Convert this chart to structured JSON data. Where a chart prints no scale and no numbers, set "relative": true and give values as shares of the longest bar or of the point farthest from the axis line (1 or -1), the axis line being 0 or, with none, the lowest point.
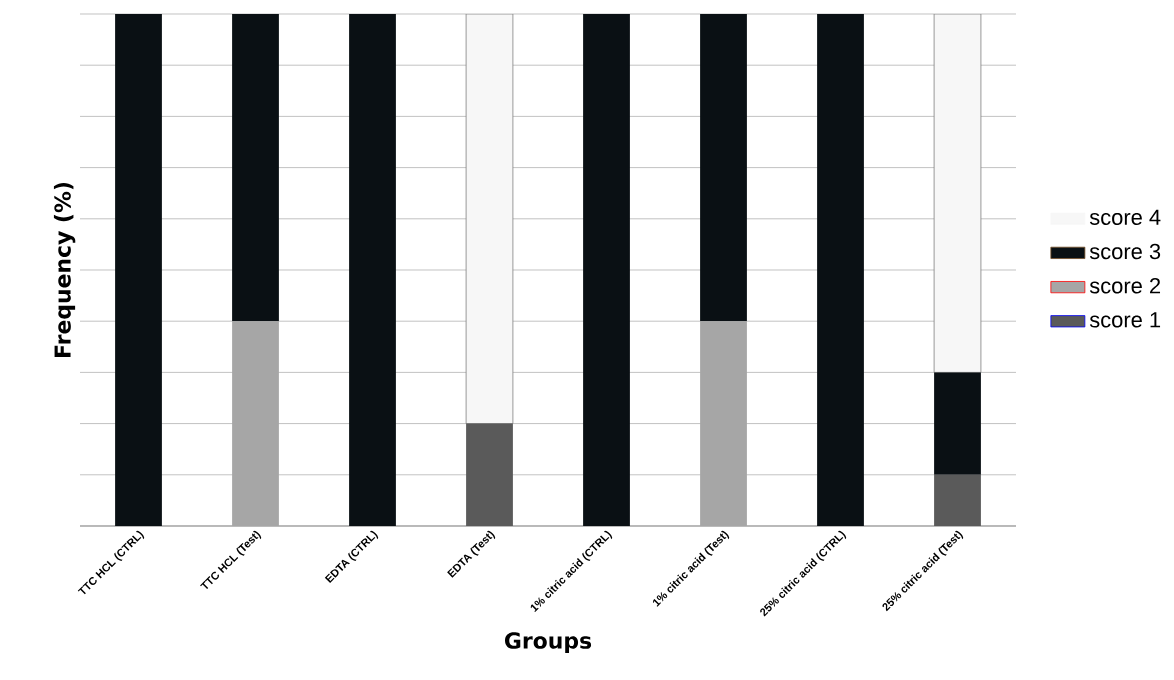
{
  "chart_data": {
    "type": "bar",
    "stacked": true,
    "relative": true,
    "xlabel": "Groups",
    "ylabel": "Frequency (%)",
    "grid": "y",
    "legend": "right",
    "categories": [
      "TTC HCL (CTRL)",
      "TTC HCL (Test)",
      "EDTA (CTRL)",
      "EDTA (Test)",
      "1% citric acid (CTRL)",
      "1% citric acid (Test)",
      "25% citric acid (CTRL)",
      "25% citric acid (Test)"
    ],
    "series": [
      {
        "name": "score 1",
        "color": "#5a5a5a",
        "values": [
          0,
          0,
          0,
          0.2,
          0,
          0,
          0,
          0.1
        ]
      },
      {
        "name": "score 2",
        "color": "#a6a6a6",
        "values": [
          0,
          0.4,
          0,
          0,
          0,
          0.4,
          0,
          0
        ]
      },
      {
        "name": "score 3",
        "color": "#0a1014",
        "values": [
          1,
          0.6,
          1,
          0,
          1,
          0.6,
          1,
          0.2
        ]
      },
      {
        "name": "score 4",
        "color": "#f7f7f7",
        "values": [
          0,
          0,
          0,
          0.8,
          0,
          0,
          0,
          0.7
        ]
      }
    ]
  }
}
